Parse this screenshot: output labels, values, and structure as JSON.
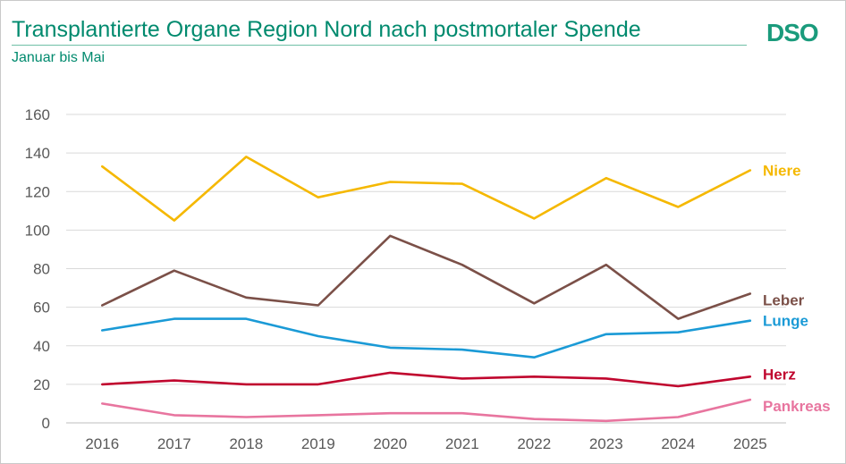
{
  "title": "Transplantierte Organe Region Nord nach postmortaler Spende",
  "subtitle": "Januar bis Mai",
  "logo": {
    "text": "DSO",
    "color": "#1a9b7c"
  },
  "chart_data": {
    "type": "line",
    "title": "Transplantierte Organe Region Nord nach postmortaler Spende",
    "subtitle": "Januar bis Mai",
    "xlabel": "",
    "ylabel": "",
    "x": [
      "2016",
      "2017",
      "2018",
      "2019",
      "2020",
      "2021",
      "2022",
      "2023",
      "2024",
      "2025"
    ],
    "ylim": [
      0,
      160
    ],
    "yticks": [
      "0",
      "20",
      "40",
      "60",
      "80",
      "100",
      "120",
      "140",
      "160"
    ],
    "grid": true,
    "legend": "labels at line ends (right)",
    "series": [
      {
        "name": "Niere",
        "color": "#f5b800",
        "values": [
          133,
          105,
          138,
          117,
          125,
          124,
          106,
          127,
          112,
          131
        ]
      },
      {
        "name": "Leber",
        "color": "#7b5048",
        "values": [
          61,
          79,
          65,
          61,
          97,
          82,
          62,
          82,
          54,
          67
        ]
      },
      {
        "name": "Lunge",
        "color": "#1a9ad6",
        "values": [
          48,
          54,
          54,
          45,
          39,
          38,
          34,
          46,
          47,
          53
        ]
      },
      {
        "name": "Herz",
        "color": "#c0062e",
        "values": [
          20,
          22,
          20,
          20,
          26,
          23,
          24,
          23,
          19,
          24
        ]
      },
      {
        "name": "Pankreas",
        "color": "#e8759f",
        "values": [
          10,
          4,
          3,
          4,
          5,
          5,
          2,
          1,
          3,
          12
        ]
      }
    ]
  }
}
